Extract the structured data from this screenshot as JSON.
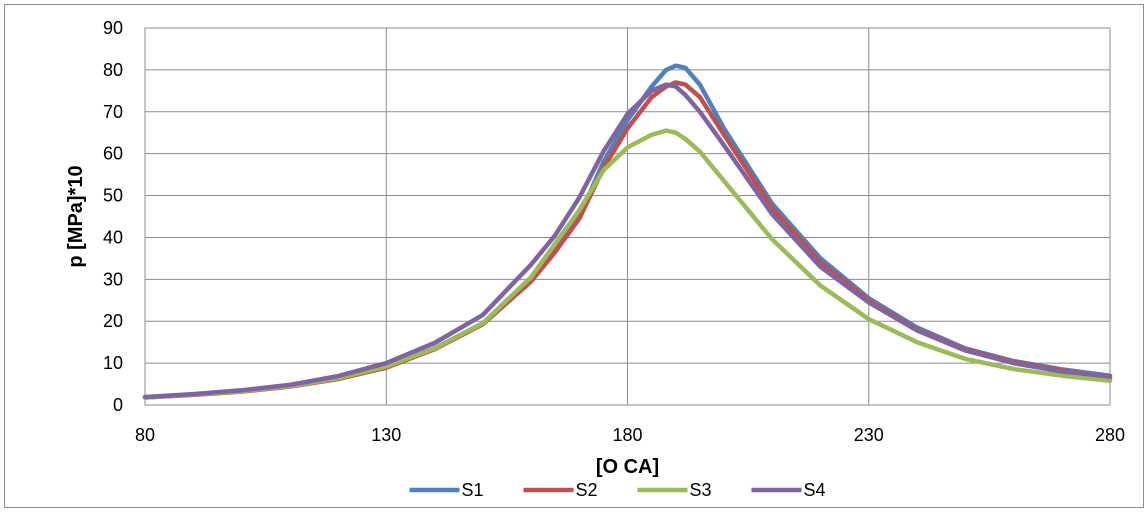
{
  "chart_data": {
    "type": "line",
    "xlabel": "[O CA]",
    "ylabel": "p [MPa]*10",
    "xlim": [
      80,
      280
    ],
    "ylim": [
      0,
      90
    ],
    "x_ticks": [
      "80",
      "130",
      "180",
      "230",
      "280"
    ],
    "y_ticks": [
      "0",
      "10",
      "20",
      "30",
      "40",
      "50",
      "60",
      "70",
      "80",
      "90"
    ],
    "grid": "both",
    "legend_position": "bottom",
    "x": [
      80,
      90,
      100,
      110,
      120,
      130,
      140,
      150,
      160,
      165,
      170,
      175,
      180,
      185,
      188,
      190,
      192,
      195,
      200,
      210,
      220,
      230,
      240,
      250,
      260,
      270,
      280
    ],
    "series": [
      {
        "name": "S1",
        "color": "#4f81bd",
        "values": [
          1.8,
          2.5,
          3.3,
          4.5,
          6.3,
          9.0,
          13.5,
          19.5,
          30.0,
          37.0,
          45.0,
          58.0,
          68.0,
          76.0,
          80.0,
          81.0,
          80.5,
          76.5,
          66.0,
          48.0,
          35.0,
          25.5,
          18.5,
          13.5,
          10.5,
          8.5,
          7.0
        ]
      },
      {
        "name": "S2",
        "color": "#c0504d",
        "values": [
          1.8,
          2.4,
          3.2,
          4.4,
          6.2,
          8.9,
          13.3,
          19.3,
          29.5,
          36.5,
          44.5,
          56.5,
          66.0,
          73.5,
          76.0,
          77.0,
          76.5,
          73.5,
          64.5,
          47.0,
          34.0,
          25.0,
          18.0,
          13.3,
          10.3,
          8.3,
          6.5
        ]
      },
      {
        "name": "S3",
        "color": "#9bbb59",
        "values": [
          1.8,
          2.5,
          3.3,
          4.5,
          6.4,
          9.2,
          13.5,
          19.5,
          30.5,
          38.5,
          46.5,
          56.0,
          61.5,
          64.5,
          65.5,
          65.0,
          63.5,
          60.5,
          53.5,
          39.5,
          28.5,
          20.5,
          15.0,
          11.0,
          8.6,
          7.0,
          5.8
        ]
      },
      {
        "name": "S4",
        "color": "#8064a2",
        "values": [
          1.9,
          2.6,
          3.5,
          4.8,
          6.9,
          10.0,
          14.8,
          21.5,
          33.5,
          40.5,
          49.5,
          60.5,
          69.5,
          75.0,
          76.5,
          76.0,
          74.0,
          70.0,
          62.0,
          45.5,
          33.0,
          24.5,
          17.8,
          13.0,
          10.0,
          8.0,
          6.8
        ]
      }
    ]
  }
}
